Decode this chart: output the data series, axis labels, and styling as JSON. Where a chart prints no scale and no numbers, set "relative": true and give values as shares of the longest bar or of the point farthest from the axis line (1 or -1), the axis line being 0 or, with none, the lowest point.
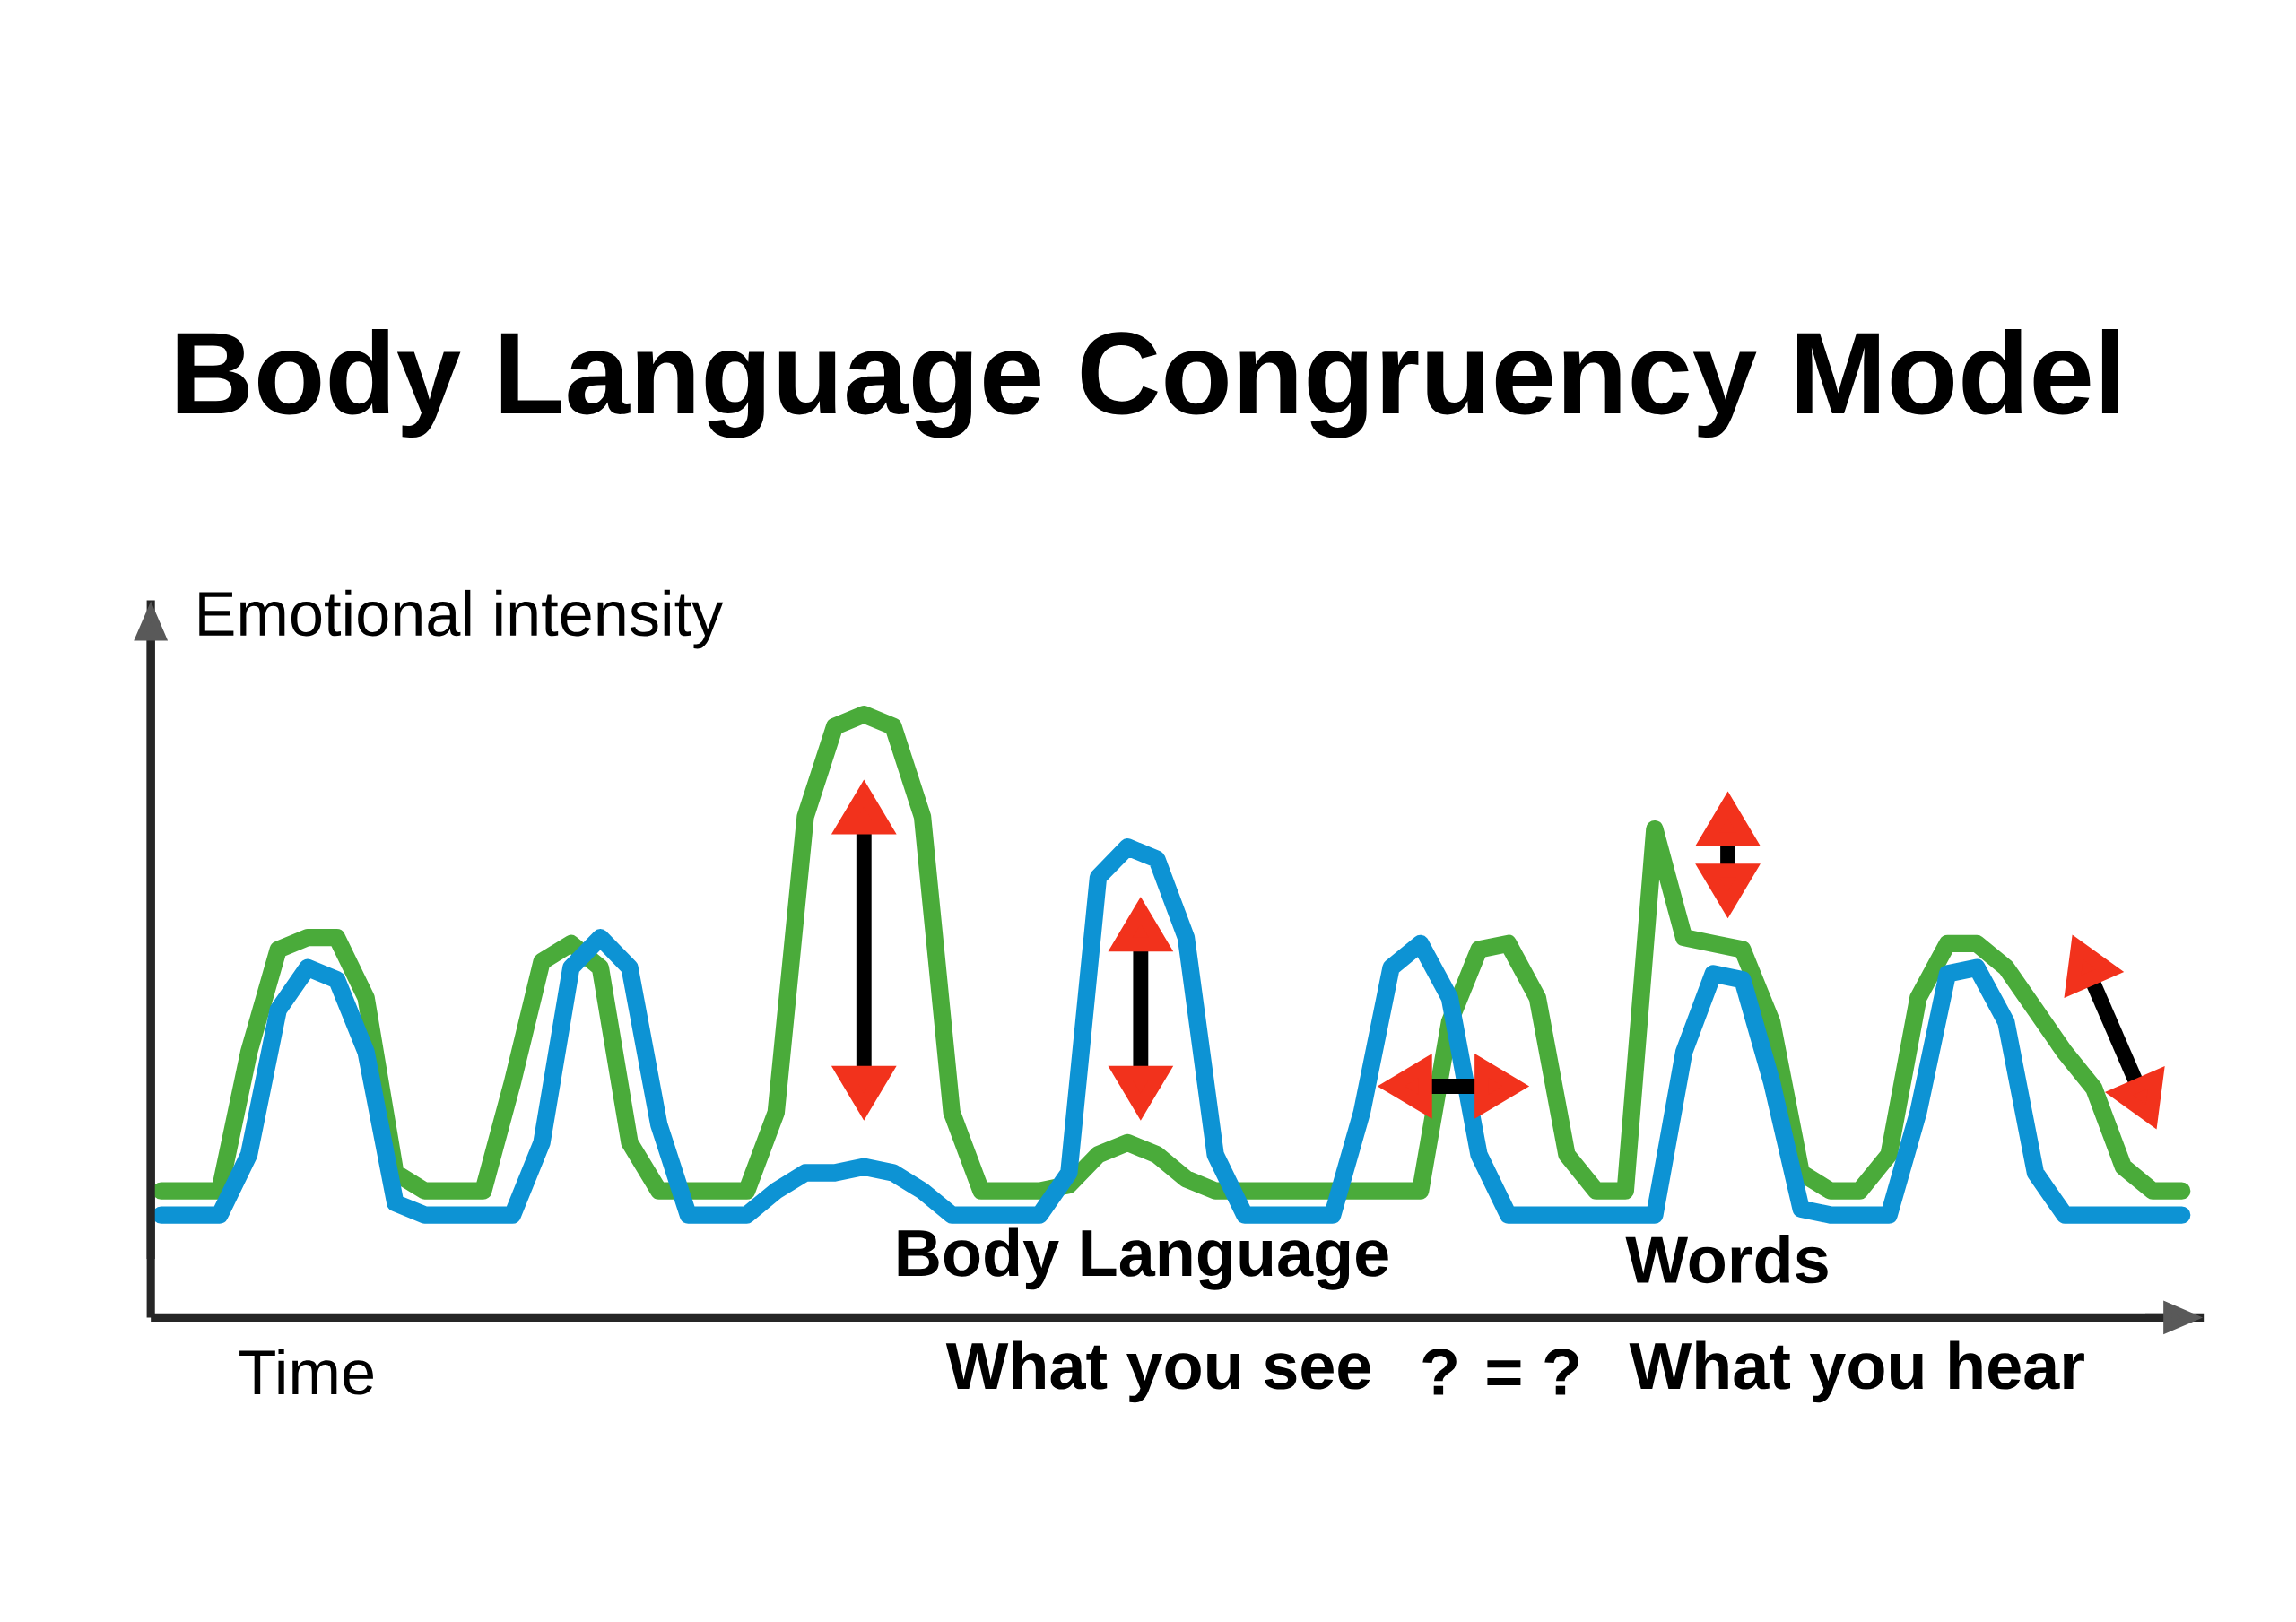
{
  "chart_data": {
    "type": "line",
    "title": "Body Language Congruency Model",
    "xlabel": "Time",
    "ylabel": "Emotional intensity",
    "relative": true,
    "marker": "none",
    "line_style": "solid",
    "annotations": [
      "Body Language",
      "Words",
      "What you see",
      "? = ?",
      "What you hear"
    ],
    "categories": [
      null,
      null,
      null,
      null,
      null,
      null,
      null,
      null,
      null,
      null,
      null,
      null,
      null,
      null,
      null,
      null,
      null,
      null,
      null,
      null,
      null,
      null,
      null,
      null,
      null,
      null,
      null,
      null,
      null,
      null,
      null,
      null,
      null,
      null,
      null,
      null,
      null,
      null,
      null,
      null,
      null,
      null,
      null,
      null,
      null,
      null,
      null,
      null,
      null,
      null,
      null,
      null,
      null,
      null,
      null,
      null,
      null,
      null,
      null,
      null,
      null,
      null,
      null,
      null,
      null,
      null,
      null,
      null,
      null,
      null
    ],
    "series": [
      {
        "color": "#4aab3a",
        "values": [
          0.21,
          0.21,
          0.21,
          0.44,
          0.61,
          0.63,
          0.63,
          0.53,
          0.24,
          0.21,
          0.21,
          0.21,
          0.39,
          0.59,
          0.62,
          0.58,
          0.29,
          0.21,
          0.21,
          0.21,
          0.21,
          0.34,
          0.83,
          0.98,
          1.0,
          0.98,
          0.83,
          0.34,
          0.21,
          0.21,
          0.21,
          0.22,
          0.27,
          0.29,
          0.27,
          0.23,
          0.21,
          0.21,
          0.21,
          0.21,
          0.21,
          0.21,
          0.21,
          0.21,
          0.49,
          0.61,
          0.62,
          0.53,
          0.27,
          0.21,
          0.21,
          0.81,
          0.63,
          0.62,
          0.61,
          0.49,
          0.24,
          0.21,
          0.21,
          0.27,
          0.53,
          0.62,
          0.62,
          0.58,
          0.51,
          0.44,
          0.38,
          0.25,
          0.21,
          0.21
        ]
      },
      {
        "color": "#0d93d4",
        "values": [
          0.17,
          0.17,
          0.17,
          0.27,
          0.51,
          0.58,
          0.56,
          0.44,
          0.19,
          0.17,
          0.17,
          0.17,
          0.17,
          0.29,
          0.58,
          0.63,
          0.58,
          0.32,
          0.17,
          0.17,
          0.17,
          0.21,
          0.24,
          0.24,
          0.25,
          0.24,
          0.21,
          0.17,
          0.17,
          0.17,
          0.17,
          0.24,
          0.73,
          0.78,
          0.76,
          0.63,
          0.27,
          0.17,
          0.17,
          0.17,
          0.17,
          0.34,
          0.58,
          0.62,
          0.53,
          0.27,
          0.17,
          0.17,
          0.17,
          0.17,
          0.17,
          0.17,
          0.44,
          0.57,
          0.56,
          0.39,
          0.18,
          0.17,
          0.17,
          0.17,
          0.34,
          0.57,
          0.58,
          0.49,
          0.24,
          0.17,
          0.17,
          0.17,
          0.17,
          0.17
        ]
      }
    ]
  }
}
